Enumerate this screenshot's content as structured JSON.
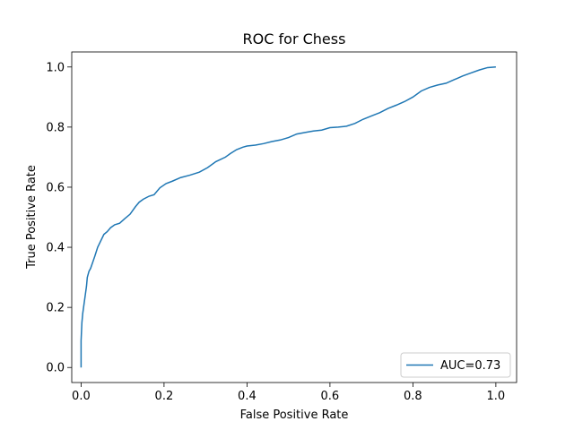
{
  "chart_data": {
    "type": "line",
    "title": "ROC for Chess",
    "xlabel": "False Positive Rate",
    "ylabel": "True Positive Rate",
    "xlim": [
      -0.0225,
      1.05
    ],
    "ylim": [
      -0.05,
      1.05
    ],
    "xticks": [
      0.0,
      0.2,
      0.4,
      0.6,
      0.8,
      1.0
    ],
    "yticks": [
      0.0,
      0.2,
      0.4,
      0.6,
      0.8,
      1.0
    ],
    "grid": false,
    "legend_position": "lower right",
    "colors": {
      "series": "#1f77b4",
      "axes": "#000000",
      "legend_border": "#cccccc"
    },
    "series": [
      {
        "name": "AUC=0.73",
        "x": [
          0.0,
          0.0,
          0.001,
          0.002,
          0.004,
          0.007,
          0.01,
          0.013,
          0.015,
          0.019,
          0.023,
          0.028,
          0.033,
          0.04,
          0.047,
          0.055,
          0.063,
          0.071,
          0.081,
          0.093,
          0.105,
          0.118,
          0.131,
          0.14,
          0.15,
          0.164,
          0.176,
          0.19,
          0.205,
          0.22,
          0.24,
          0.262,
          0.285,
          0.305,
          0.325,
          0.348,
          0.36,
          0.375,
          0.39,
          0.4,
          0.42,
          0.44,
          0.46,
          0.48,
          0.5,
          0.52,
          0.54,
          0.56,
          0.58,
          0.6,
          0.62,
          0.64,
          0.66,
          0.68,
          0.7,
          0.72,
          0.74,
          0.76,
          0.78,
          0.8,
          0.82,
          0.84,
          0.86,
          0.88,
          0.9,
          0.92,
          0.94,
          0.96,
          0.98,
          1.0
        ],
        "y": [
          0.0,
          0.09,
          0.12,
          0.15,
          0.18,
          0.21,
          0.24,
          0.27,
          0.3,
          0.32,
          0.33,
          0.35,
          0.37,
          0.4,
          0.42,
          0.443,
          0.452,
          0.465,
          0.475,
          0.48,
          0.495,
          0.51,
          0.535,
          0.55,
          0.56,
          0.57,
          0.575,
          0.598,
          0.612,
          0.62,
          0.632,
          0.64,
          0.65,
          0.665,
          0.685,
          0.7,
          0.712,
          0.725,
          0.733,
          0.737,
          0.74,
          0.745,
          0.752,
          0.757,
          0.765,
          0.777,
          0.782,
          0.787,
          0.79,
          0.798,
          0.8,
          0.803,
          0.812,
          0.826,
          0.837,
          0.848,
          0.862,
          0.873,
          0.885,
          0.9,
          0.92,
          0.932,
          0.94,
          0.946,
          0.958,
          0.97,
          0.98,
          0.99,
          0.998,
          1.0
        ]
      }
    ]
  }
}
